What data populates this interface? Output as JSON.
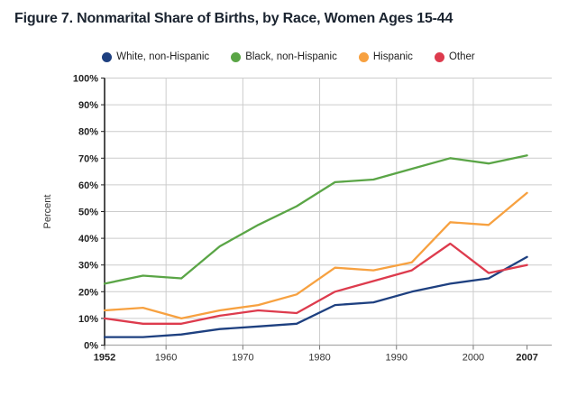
{
  "title": "Figure 7. Nonmarital Share of Births, by Race, Women Ages 15-44",
  "colors": {
    "title_text": "#1b2430",
    "axis_line": "#222222",
    "baseline": "#aaaaaa",
    "gridline": "#cccccc",
    "tick_label": "#222222",
    "x_label": "#333333"
  },
  "chart_data": {
    "type": "line",
    "title": "Figure 7. Nonmarital Share of Births, by Race, Women Ages 15-44",
    "xlabel": "",
    "ylabel": "Percent",
    "ylim": [
      0,
      100
    ],
    "y_ticks": [
      "0%",
      "10%",
      "20%",
      "30%",
      "40%",
      "50%",
      "60%",
      "70%",
      "80%",
      "90%",
      "100%"
    ],
    "x_axis_ticks": [
      1952,
      1960,
      1970,
      1980,
      1990,
      2000,
      2007
    ],
    "x_axis_bold_ticks": [
      1952,
      2007
    ],
    "grid": true,
    "legend_position": "top",
    "x": [
      1952,
      1957,
      1962,
      1967,
      1972,
      1977,
      1982,
      1987,
      1992,
      1997,
      2002,
      2007
    ],
    "series": [
      {
        "name": "White, non-Hispanic",
        "color": "#1e4080",
        "values": [
          3,
          3,
          4,
          6,
          7,
          8,
          15,
          16,
          20,
          23,
          25,
          33
        ]
      },
      {
        "name": "Black, non-Hispanic",
        "color": "#5aa546",
        "values": [
          23,
          26,
          25,
          37,
          45,
          52,
          61,
          62,
          66,
          70,
          68,
          71
        ]
      },
      {
        "name": "Hispanic",
        "color": "#f7a140",
        "values": [
          13,
          14,
          10,
          13,
          15,
          19,
          29,
          28,
          31,
          46,
          45,
          57
        ]
      },
      {
        "name": "Other",
        "color": "#dd3b4d",
        "values": [
          10,
          8,
          8,
          11,
          13,
          12,
          20,
          24,
          28,
          38,
          27,
          30
        ]
      }
    ]
  }
}
